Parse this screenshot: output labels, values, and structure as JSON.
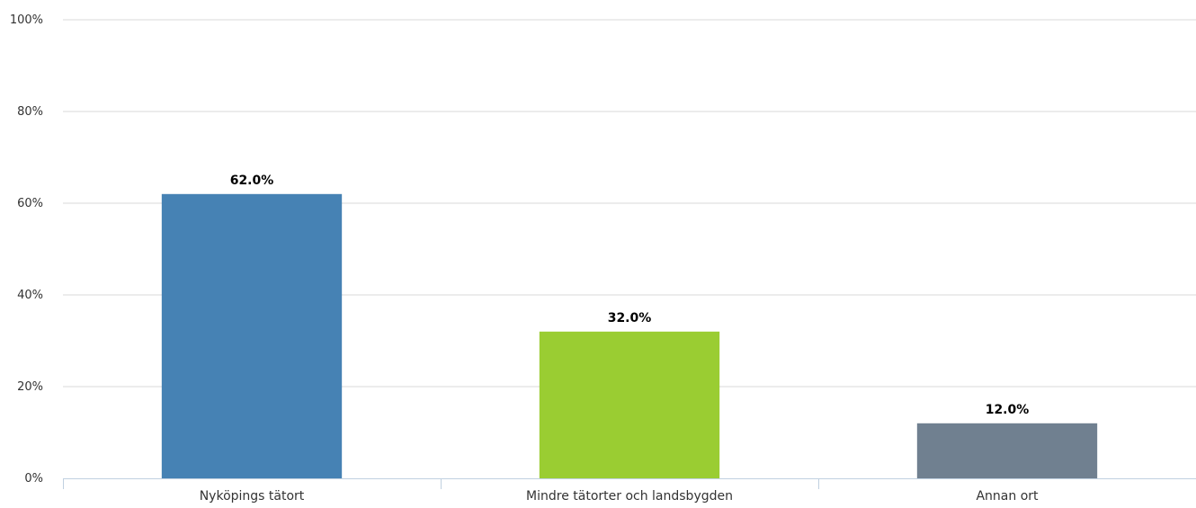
{
  "chart_data": {
    "type": "bar",
    "categories": [
      "Nyköpings tätort",
      "Mindre tätorter och landsbygden",
      "Annan ort"
    ],
    "values": [
      62.0,
      32.0,
      12.0
    ],
    "data_labels": [
      "62.0%",
      "32.0%",
      "12.0%"
    ],
    "colors": [
      "#4682b4",
      "#9acd32",
      "#708090"
    ],
    "yticks": [
      "0%",
      "20%",
      "40%",
      "60%",
      "80%",
      "100%"
    ],
    "ylim": [
      0,
      100
    ],
    "grid": true,
    "legend": "none",
    "title": "",
    "xlabel": "",
    "ylabel": ""
  }
}
